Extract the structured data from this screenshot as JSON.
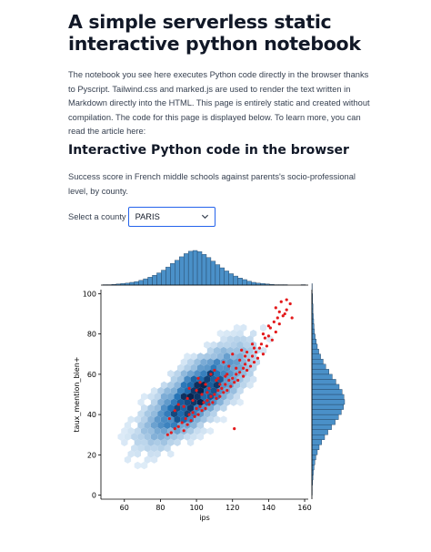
{
  "title": "A simple serverless static interactive python notebook",
  "intro": "The notebook you see here executes Python code directly in the browser thanks to Pyscript. Tailwind.css and marked.js are used to render the text written in Markdown directly into the HTML. This page is entirely static and created without compilation. The code for this page is displayed below. To learn more, you can read the article here:",
  "section_title": "Interactive Python code in the browser",
  "description": "Success score in French middle schools against parents's socio-professional level, by county.",
  "county_select": {
    "label": "Select a county",
    "value": "PARIS",
    "icon": "chevron-down-icon"
  },
  "chart_data": {
    "type": "scatter",
    "subtype": "jointplot with hexbin density, highlighted scatter and marginal histograms",
    "xlabel": "ips",
    "ylabel": "taux_mention_bien+",
    "xlim": [
      47,
      162
    ],
    "ylim": [
      -2,
      102
    ],
    "xticks": [
      60,
      80,
      100,
      120,
      140,
      160
    ],
    "yticks": [
      0,
      20,
      40,
      60,
      80,
      100
    ],
    "colors": {
      "hexbin": "#3b82c4",
      "highlight": "#e31a1c",
      "hist": "#4a90c8"
    },
    "hexbin_density": {
      "center": [
        100,
        50
      ],
      "spread_x": 17,
      "spread_y": 14,
      "correlation": 0.75
    },
    "series": [
      {
        "name": "PARIS",
        "color": "#e31a1c",
        "points": [
          [
            147,
            96
          ],
          [
            150,
            97
          ],
          [
            152,
            95
          ],
          [
            144,
            93
          ],
          [
            146,
            91
          ],
          [
            149,
            90
          ],
          [
            153,
            88
          ],
          [
            148,
            89
          ],
          [
            143,
            86
          ],
          [
            146,
            85
          ],
          [
            141,
            83
          ],
          [
            144,
            81
          ],
          [
            140,
            79
          ],
          [
            138,
            78
          ],
          [
            142,
            77
          ],
          [
            136,
            75
          ],
          [
            139,
            74
          ],
          [
            135,
            73
          ],
          [
            133,
            71
          ],
          [
            137,
            70
          ],
          [
            131,
            69
          ],
          [
            134,
            68
          ],
          [
            129,
            67
          ],
          [
            132,
            66
          ],
          [
            127,
            65
          ],
          [
            130,
            64
          ],
          [
            126,
            63
          ],
          [
            128,
            62
          ],
          [
            124,
            61
          ],
          [
            122,
            60
          ],
          [
            126,
            59
          ],
          [
            120,
            58
          ],
          [
            123,
            57
          ],
          [
            118,
            57
          ],
          [
            121,
            56
          ],
          [
            116,
            55
          ],
          [
            119,
            54
          ],
          [
            114,
            53
          ],
          [
            117,
            52
          ],
          [
            112,
            52
          ],
          [
            115,
            51
          ],
          [
            110,
            50
          ],
          [
            113,
            49
          ],
          [
            108,
            49
          ],
          [
            111,
            48
          ],
          [
            106,
            47
          ],
          [
            109,
            46
          ],
          [
            104,
            46
          ],
          [
            107,
            45
          ],
          [
            102,
            44
          ],
          [
            105,
            43
          ],
          [
            100,
            43
          ],
          [
            103,
            42
          ],
          [
            98,
            41
          ],
          [
            101,
            40
          ],
          [
            96,
            40
          ],
          [
            99,
            39
          ],
          [
            94,
            38
          ],
          [
            97,
            37
          ],
          [
            92,
            36
          ],
          [
            95,
            35
          ],
          [
            90,
            34
          ],
          [
            88,
            33
          ],
          [
            93,
            32
          ],
          [
            86,
            31
          ],
          [
            84,
            30
          ],
          [
            110,
            62
          ],
          [
            115,
            66
          ],
          [
            120,
            70
          ],
          [
            125,
            72
          ],
          [
            112,
            58
          ],
          [
            105,
            55
          ],
          [
            100,
            52
          ],
          [
            108,
            60
          ],
          [
            118,
            64
          ],
          [
            95,
            48
          ],
          [
            102,
            56
          ],
          [
            90,
            45
          ],
          [
            124,
            67
          ],
          [
            131,
            75
          ],
          [
            137,
            80
          ],
          [
            128,
            71
          ],
          [
            121,
            33
          ],
          [
            103,
            50
          ],
          [
            107,
            53
          ],
          [
            113,
            55
          ],
          [
            117,
            60
          ],
          [
            98,
            47
          ],
          [
            93,
            44
          ],
          [
            106,
            51
          ],
          [
            111,
            57
          ],
          [
            116,
            59
          ],
          [
            122,
            63
          ],
          [
            127,
            69
          ],
          [
            132,
            73
          ],
          [
            140,
            84
          ],
          [
            145,
            88
          ],
          [
            150,
            92
          ],
          [
            96,
            53
          ],
          [
            101,
            58
          ],
          [
            88,
            42
          ],
          [
            85,
            38
          ]
        ]
      }
    ],
    "marginal_x": {
      "bin_start": 48,
      "bin_width": 2.5,
      "counts": [
        1,
        1,
        2,
        3,
        4,
        5,
        7,
        9,
        12,
        16,
        20,
        25,
        31,
        38,
        46,
        55,
        63,
        72,
        80,
        86,
        88,
        85,
        78,
        70,
        61,
        52,
        44,
        36,
        29,
        23,
        18,
        14,
        10,
        7,
        5,
        4,
        3,
        2,
        1,
        1,
        1,
        0,
        0,
        0,
        1
      ]
    },
    "marginal_y": {
      "bin_start": 0,
      "bin_width": 2.5,
      "counts": [
        1,
        1,
        2,
        3,
        4,
        6,
        8,
        11,
        15,
        20,
        27,
        35,
        44,
        54,
        64,
        73,
        81,
        87,
        90,
        88,
        83,
        75,
        66,
        56,
        47,
        38,
        31,
        24,
        19,
        15,
        12,
        9,
        7,
        6,
        5,
        4,
        3,
        3,
        2,
        2,
        1,
        1
      ]
    }
  }
}
